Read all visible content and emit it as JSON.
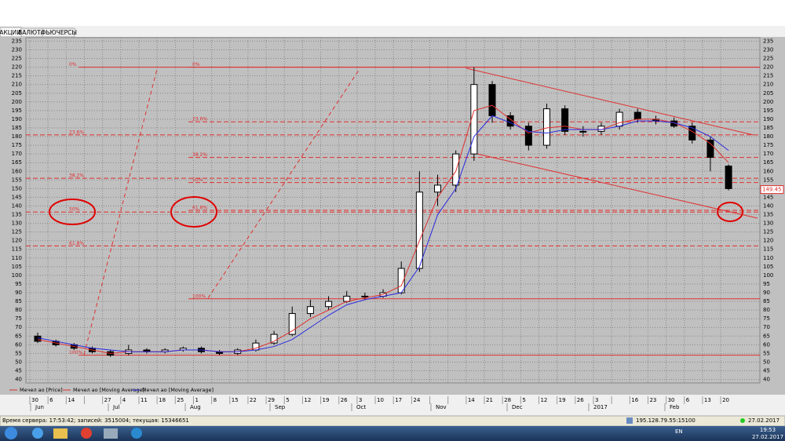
{
  "tabs": [
    "АКЦИИ",
    "ВАЛЮТА",
    "ФЬЮЧЕРСЫ"
  ],
  "chart_data": {
    "type": "candlestick",
    "categories": [
      "30",
      "6",
      "14",
      null,
      "27",
      "4",
      "11",
      "18",
      "25",
      "1",
      "8",
      "15",
      "22",
      "29",
      "5",
      "12",
      "19",
      "26",
      "3",
      "10",
      "17",
      "24",
      null,
      null,
      "14",
      "21",
      "28",
      "5",
      "12",
      "19",
      "26",
      "3",
      null,
      "16",
      "23",
      "30",
      "6",
      "13",
      "20"
    ],
    "months": [
      "Jun",
      "Jul",
      "Aug",
      "Sep",
      "Oct",
      "Nov",
      "Dec",
      "2017",
      "Feb"
    ],
    "series": [
      {
        "name": "Мечел ао [Price]",
        "color": "#d03030",
        "open": [
          65,
          62,
          60,
          58,
          56,
          55,
          57,
          56,
          57,
          58,
          56,
          55,
          57,
          61,
          66,
          78,
          82,
          85,
          88,
          88,
          90,
          104,
          148,
          152,
          170,
          210,
          192,
          186,
          175,
          196,
          183,
          183,
          186,
          194,
          190,
          189,
          186,
          178,
          163
        ],
        "high": [
          67,
          63,
          61,
          59,
          57,
          60,
          58,
          58,
          59,
          59,
          57,
          58,
          63,
          68,
          82,
          86,
          88,
          91,
          90,
          92,
          108,
          160,
          158,
          172,
          220,
          212,
          194,
          188,
          199,
          198,
          186,
          188,
          196,
          196,
          192,
          191,
          188,
          180,
          164
        ],
        "low": [
          61,
          59,
          57,
          55,
          53,
          54,
          55,
          55,
          56,
          55,
          54,
          54,
          56,
          60,
          65,
          76,
          80,
          84,
          86,
          87,
          89,
          102,
          140,
          148,
          166,
          188,
          184,
          172,
          173,
          181,
          180,
          181,
          184,
          188,
          187,
          185,
          176,
          160,
          149
        ],
        "close": [
          62,
          60,
          58,
          56,
          54,
          57,
          56,
          57,
          58,
          56,
          55,
          57,
          61,
          66,
          78,
          82,
          85,
          88,
          88,
          90,
          104,
          148,
          152,
          170,
          210,
          192,
          186,
          175,
          196,
          183,
          183,
          186,
          194,
          190,
          189,
          186,
          178,
          168,
          150
        ]
      },
      {
        "name": "Мечел ао [Moving Average]",
        "color": "#e03030",
        "values": [
          63,
          61,
          59,
          57,
          55,
          56,
          56,
          56,
          57,
          57,
          56,
          56,
          58,
          62,
          68,
          75,
          80,
          85,
          87,
          89,
          94,
          120,
          145,
          160,
          195,
          198,
          190,
          182,
          185,
          186,
          184,
          184,
          188,
          190,
          190,
          188,
          183,
          176,
          165
        ]
      },
      {
        "name": "Мечел ао [Moving Average]",
        "color": "#2a2ae0",
        "values": [
          64,
          62,
          60,
          58,
          57,
          56,
          56,
          56,
          57,
          57,
          56,
          56,
          57,
          59,
          63,
          70,
          77,
          83,
          86,
          88,
          90,
          105,
          135,
          150,
          180,
          192,
          188,
          183,
          182,
          184,
          184,
          184,
          186,
          189,
          189,
          188,
          185,
          180,
          172
        ]
      }
    ],
    "ylim": [
      38,
      237
    ],
    "yticks": [
      40,
      45,
      50,
      55,
      60,
      65,
      70,
      75,
      80,
      85,
      90,
      95,
      100,
      105,
      110,
      115,
      120,
      125,
      130,
      135,
      140,
      145,
      150,
      155,
      160,
      165,
      170,
      175,
      180,
      185,
      190,
      195,
      200,
      205,
      210,
      215,
      220,
      225,
      230,
      235
    ],
    "grid": true,
    "last_price": 149.45,
    "fib_sets": [
      [
        {
          "label": "0%",
          "value": 220,
          "style": "solid"
        },
        {
          "label": "23.6%",
          "value": 181,
          "style": "dashed"
        },
        {
          "label": "38.2%",
          "value": 156,
          "style": "dashed"
        },
        {
          "label": "50%",
          "value": 136.5,
          "style": "dashed"
        },
        {
          "label": "61.8%",
          "value": 117,
          "style": "dashed"
        },
        {
          "label": "100%",
          "value": 54,
          "style": "solid"
        }
      ],
      [
        {
          "label": "0%",
          "value": 220,
          "style": "solid"
        },
        {
          "label": "23.6%",
          "value": 188.5,
          "style": "dashed"
        },
        {
          "label": "38.2%",
          "value": 168,
          "style": "dashed"
        },
        {
          "label": "50%",
          "value": 153.5,
          "style": "dashed"
        },
        {
          "label": "61.8%",
          "value": 137.5,
          "style": "dashed"
        },
        {
          "label": "100%",
          "value": 86.5,
          "style": "solid"
        }
      ]
    ]
  },
  "status": {
    "server": "Время сервера: 17:53:42; записей: 3515004; текущая: 15346651",
    "address": "195.128.79.55:15100",
    "date": "27.02.2017"
  },
  "taskbar": {
    "lang": "EN",
    "time": "19:53",
    "date": "27.02.2017"
  }
}
